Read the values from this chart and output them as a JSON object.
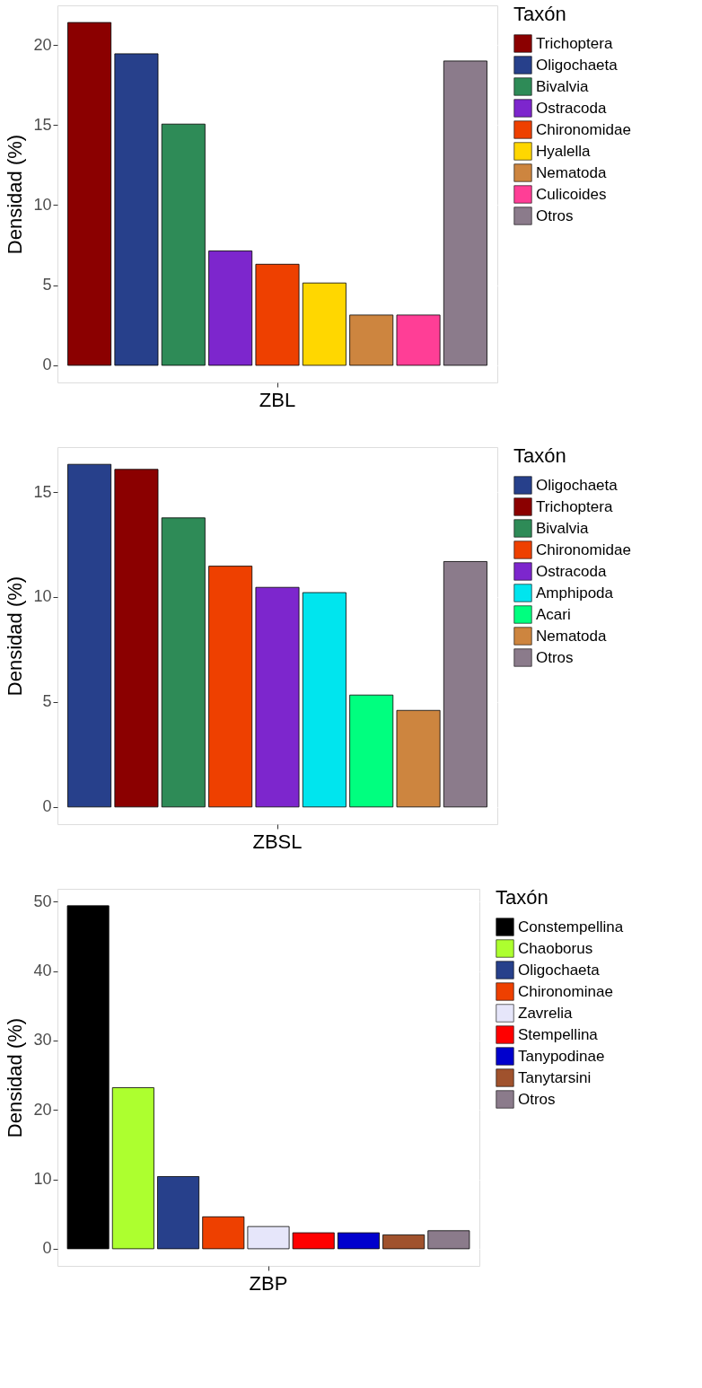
{
  "chart_data": [
    {
      "type": "bar",
      "categories": [
        "ZBL"
      ],
      "ylabel": "Densidad (%)",
      "legend_title": "Taxón",
      "legend": "right",
      "grid": "y",
      "ylim": [
        -1.07,
        22.47
      ],
      "yticks": [
        0,
        5,
        10,
        15,
        20
      ],
      "series": [
        {
          "name": "Trichoptera",
          "color": "#8b0000",
          "values": [
            21.4
          ]
        },
        {
          "name": "Oligochaeta",
          "color": "#27408b",
          "values": [
            19.45
          ]
        },
        {
          "name": "Bivalvia",
          "color": "#2e8b57",
          "values": [
            15.06
          ]
        },
        {
          "name": "Ostracoda",
          "color": "#7d26cd",
          "values": [
            7.14
          ]
        },
        {
          "name": "Chironomidae",
          "color": "#ee4000",
          "values": [
            6.31
          ]
        },
        {
          "name": "Hyalella",
          "color": "#ffd700",
          "values": [
            5.14
          ]
        },
        {
          "name": "Nematoda",
          "color": "#cd853f",
          "values": [
            3.14
          ]
        },
        {
          "name": "Culicoides",
          "color": "#ff3e96",
          "values": [
            3.14
          ]
        },
        {
          "name": "Otros",
          "color": "#8b7b8b",
          "values": [
            19.0
          ]
        }
      ]
    },
    {
      "type": "bar",
      "categories": [
        "ZBSL"
      ],
      "ylabel": "Densidad (%)",
      "legend_title": "Taxón",
      "legend": "right",
      "grid": "y",
      "ylim": [
        -0.82,
        17.14
      ],
      "yticks": [
        0,
        5,
        10,
        15
      ],
      "series": [
        {
          "name": "Oligochaeta",
          "color": "#27408b",
          "values": [
            16.32
          ]
        },
        {
          "name": "Trichoptera",
          "color": "#8b0000",
          "values": [
            16.08
          ]
        },
        {
          "name": "Bivalvia",
          "color": "#2e8b57",
          "values": [
            13.77
          ]
        },
        {
          "name": "Chironomidae",
          "color": "#ee4000",
          "values": [
            11.47
          ]
        },
        {
          "name": "Ostracoda",
          "color": "#7d26cd",
          "values": [
            10.46
          ]
        },
        {
          "name": "Amphipoda",
          "color": "#00e5ee",
          "values": [
            10.21
          ]
        },
        {
          "name": "Acari",
          "color": "#00ff7f",
          "values": [
            5.33
          ]
        },
        {
          "name": "Nematoda",
          "color": "#cd853f",
          "values": [
            4.6
          ]
        },
        {
          "name": "Otros",
          "color": "#8b7b8b",
          "values": [
            11.69
          ]
        }
      ]
    },
    {
      "type": "bar",
      "categories": [
        "ZBP"
      ],
      "ylabel": "Densidad (%)",
      "legend_title": "Taxón",
      "legend": "right",
      "grid": "y",
      "ylim": [
        -2.47,
        51.84
      ],
      "yticks": [
        0,
        10,
        20,
        30,
        40,
        50
      ],
      "series": [
        {
          "name": "Constempellina",
          "color": "#000000",
          "values": [
            49.4
          ]
        },
        {
          "name": "Chaoborus",
          "color": "#adff2f",
          "values": [
            23.2
          ]
        },
        {
          "name": "Oligochaeta",
          "color": "#27408b",
          "values": [
            10.4
          ]
        },
        {
          "name": "Chironominae",
          "color": "#ee4000",
          "values": [
            4.6
          ]
        },
        {
          "name": "Zavrelia",
          "color": "#e6e6fa",
          "values": [
            3.2
          ]
        },
        {
          "name": "Stempellina",
          "color": "#ff0000",
          "values": [
            2.3
          ]
        },
        {
          "name": "Tanypodinae",
          "color": "#0000cd",
          "values": [
            2.3
          ]
        },
        {
          "name": "Tanytarsini",
          "color": "#a0522d",
          "values": [
            2.0
          ]
        },
        {
          "name": "Otros",
          "color": "#8b7b8b",
          "values": [
            2.6
          ]
        }
      ]
    }
  ]
}
